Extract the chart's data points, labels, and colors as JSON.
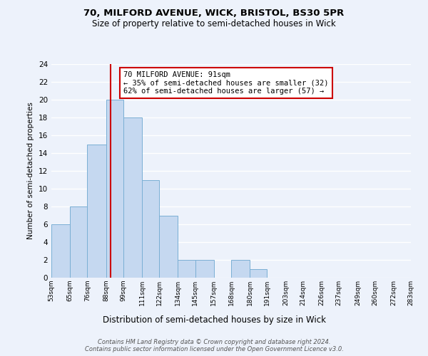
{
  "title": "70, MILFORD AVENUE, WICK, BRISTOL, BS30 5PR",
  "subtitle": "Size of property relative to semi-detached houses in Wick",
  "xlabel": "Distribution of semi-detached houses by size in Wick",
  "ylabel": "Number of semi-detached properties",
  "bin_edges": [
    53,
    65,
    76,
    88,
    99,
    111,
    122,
    134,
    145,
    157,
    168,
    180,
    191,
    203,
    214,
    226,
    237,
    249,
    260,
    272,
    283
  ],
  "bin_counts": [
    6,
    8,
    15,
    20,
    18,
    11,
    7,
    2,
    2,
    0,
    2,
    1,
    0,
    0,
    0,
    0,
    0,
    0,
    0,
    0
  ],
  "property_value": 91,
  "bar_color": "#c5d8f0",
  "bar_edge_color": "#7aafd4",
  "vline_color": "#cc0000",
  "annotation_box_edge": "#cc0000",
  "annotation_text": "70 MILFORD AVENUE: 91sqm\n← 35% of semi-detached houses are smaller (32)\n62% of semi-detached houses are larger (57) →",
  "ylim": [
    0,
    24
  ],
  "yticks": [
    0,
    2,
    4,
    6,
    8,
    10,
    12,
    14,
    16,
    18,
    20,
    22,
    24
  ],
  "tick_labels": [
    "53sqm",
    "65sqm",
    "76sqm",
    "88sqm",
    "99sqm",
    "111sqm",
    "122sqm",
    "134sqm",
    "145sqm",
    "157sqm",
    "168sqm",
    "180sqm",
    "191sqm",
    "203sqm",
    "214sqm",
    "226sqm",
    "237sqm",
    "249sqm",
    "260sqm",
    "272sqm",
    "283sqm"
  ],
  "footnote": "Contains HM Land Registry data © Crown copyright and database right 2024.\nContains public sector information licensed under the Open Government Licence v3.0.",
  "bg_color": "#edf2fb"
}
